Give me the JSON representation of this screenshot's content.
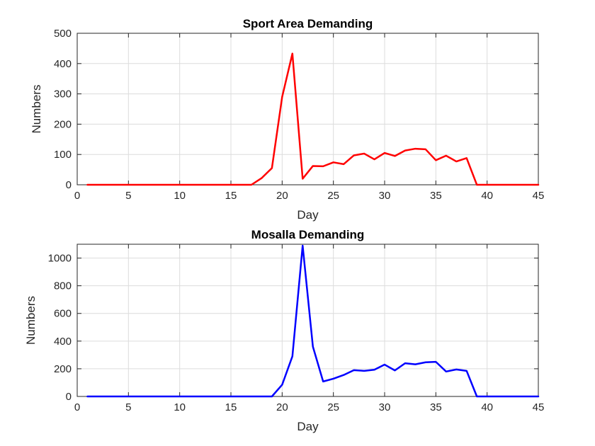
{
  "chart_data": [
    {
      "type": "line",
      "title": "Sport Area Demanding",
      "xlabel": "Day",
      "ylabel": "Numbers",
      "xlim": [
        0,
        45
      ],
      "ylim": [
        0,
        500
      ],
      "xticks": [
        0,
        5,
        10,
        15,
        20,
        25,
        30,
        35,
        40,
        45
      ],
      "yticks": [
        0,
        100,
        200,
        300,
        400,
        500
      ],
      "grid": true,
      "color": "#ff0000",
      "series": [
        {
          "x": [
            1,
            2,
            3,
            4,
            5,
            6,
            7,
            8,
            9,
            10,
            11,
            12,
            13,
            14,
            15,
            16,
            17,
            18,
            19,
            20,
            21,
            22,
            23,
            24,
            25,
            26,
            27,
            28,
            29,
            30,
            31,
            32,
            33,
            34,
            35,
            36,
            37,
            38,
            39,
            40,
            41,
            42,
            43,
            44,
            45
          ],
          "values": [
            0,
            0,
            0,
            0,
            0,
            0,
            0,
            0,
            0,
            0,
            0,
            0,
            0,
            0,
            0,
            0,
            0,
            22,
            55,
            290,
            433,
            20,
            62,
            61,
            74,
            68,
            97,
            103,
            84,
            105,
            95,
            113,
            119,
            117,
            81,
            96,
            77,
            88,
            0,
            0,
            0,
            0,
            0,
            0,
            0
          ]
        }
      ]
    },
    {
      "type": "line",
      "title": "Mosalla Demanding",
      "xlabel": "Day",
      "ylabel": "Numbers",
      "xlim": [
        0,
        45
      ],
      "ylim": [
        0,
        1100
      ],
      "xticks": [
        0,
        5,
        10,
        15,
        20,
        25,
        30,
        35,
        40,
        45
      ],
      "yticks": [
        0,
        200,
        400,
        600,
        800,
        1000
      ],
      "grid": true,
      "color": "#0000ff",
      "series": [
        {
          "x": [
            1,
            2,
            3,
            4,
            5,
            6,
            7,
            8,
            9,
            10,
            11,
            12,
            13,
            14,
            15,
            16,
            17,
            18,
            19,
            20,
            21,
            22,
            23,
            24,
            25,
            26,
            27,
            28,
            29,
            30,
            31,
            32,
            33,
            34,
            35,
            36,
            37,
            38,
            39,
            40,
            41,
            42,
            43,
            44,
            45
          ],
          "values": [
            0,
            0,
            0,
            0,
            0,
            0,
            0,
            0,
            0,
            0,
            0,
            0,
            0,
            0,
            0,
            0,
            0,
            0,
            0,
            85,
            290,
            1090,
            360,
            108,
            128,
            155,
            190,
            185,
            193,
            230,
            188,
            240,
            232,
            247,
            250,
            180,
            195,
            185,
            0,
            0,
            0,
            0,
            0,
            0,
            0
          ]
        }
      ]
    }
  ]
}
